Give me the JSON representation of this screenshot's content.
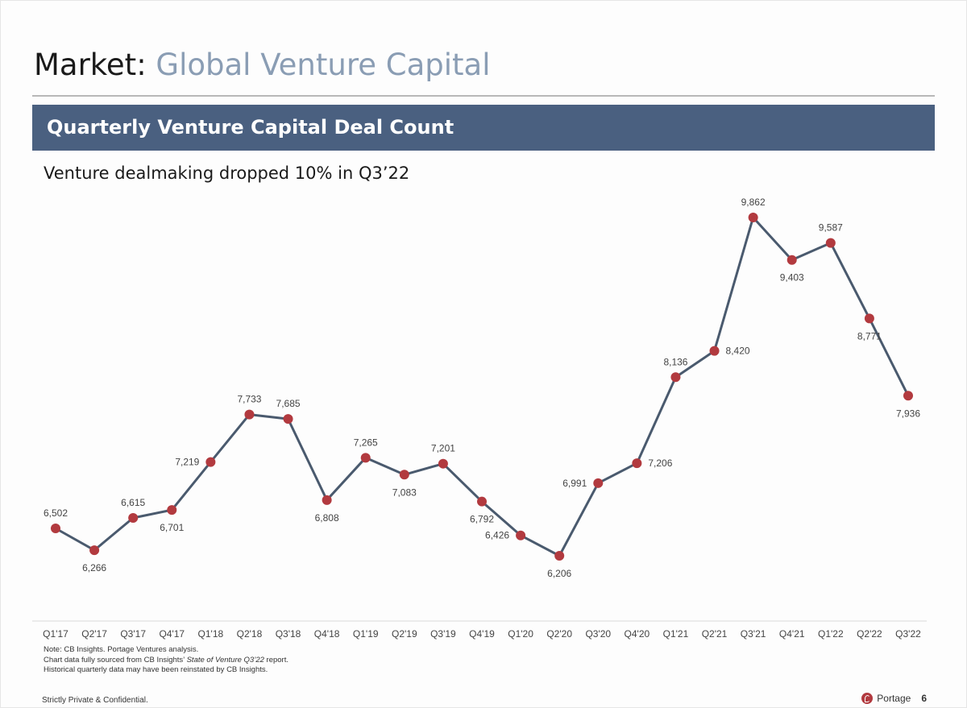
{
  "slide": {
    "title_prefix": "Market:",
    "title_main": "Global Venture Capital",
    "banner": "Quarterly Venture Capital Deal Count",
    "subtitle": "Venture dealmaking dropped 10% in Q3’22",
    "notes": [
      "Note: CB Insights. Portage Ventures analysis.",
      "Chart data fully sourced from CB Insights’ State of Venture Q3’22 report.",
      "Historical quarterly data may have been reinstated by CB Insights."
    ],
    "footer_left": "Strictly Private & Confidential.",
    "brand": "Portage",
    "page_number": "6"
  },
  "colors": {
    "banner": "#4a6080",
    "title_accent": "#8a9db4",
    "line": "#4a5a6e",
    "marker": "#b23a3f"
  },
  "chart_data": {
    "type": "line",
    "categories": [
      "Q1'17",
      "Q2'17",
      "Q3'17",
      "Q4'17",
      "Q1'18",
      "Q2'18",
      "Q3'18",
      "Q4'18",
      "Q1'19",
      "Q2'19",
      "Q3'19",
      "Q4'19",
      "Q1'20",
      "Q2'20",
      "Q3'20",
      "Q4'20",
      "Q1'21",
      "Q2'21",
      "Q3'21",
      "Q4'21",
      "Q1'22",
      "Q2'22",
      "Q3'22"
    ],
    "series": [
      {
        "values": [
          6502,
          6266,
          6615,
          6701,
          7219,
          7733,
          7685,
          6808,
          7265,
          7083,
          7201,
          6792,
          6426,
          6206,
          6991,
          7206,
          8136,
          8420,
          9862,
          9403,
          9587,
          8771,
          7936
        ]
      }
    ],
    "data_labels": [
      "6,502",
      "6,266",
      "6,615",
      "6,701",
      "7,219",
      "7,733",
      "7,685",
      "6,808",
      "7,265",
      "7,083",
      "7,201",
      "6,792",
      "6,426",
      "6,206",
      "6,991",
      "7,206",
      "8,136",
      "8,420",
      "9,862",
      "9,403",
      "9,587",
      "8,771",
      "7,936"
    ],
    "label_positions": [
      "above",
      "below",
      "above",
      "below",
      "left",
      "above",
      "above",
      "below",
      "above",
      "below",
      "above",
      "below",
      "left",
      "below",
      "left",
      "right",
      "above",
      "right",
      "above",
      "below",
      "above",
      "below",
      "below"
    ],
    "xlabel": "",
    "ylabel": "",
    "ylim": [
      6206,
      9862
    ],
    "y_axis_shown": false,
    "grid": false,
    "legend": "none"
  }
}
